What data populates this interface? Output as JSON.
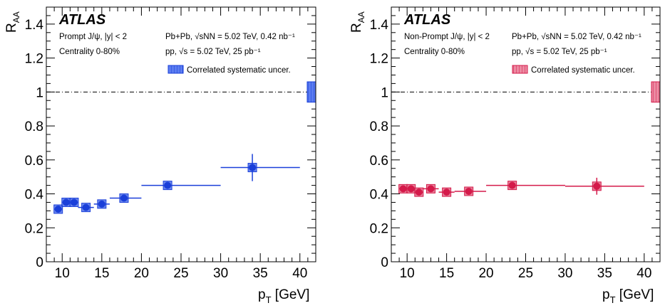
{
  "charts": [
    {
      "id": "left",
      "experiment": "ATLAS",
      "info_left": [
        "Prompt J/ψ, |y| < 2",
        "Centrality 0-80%"
      ],
      "info_right": [
        "Pb+Pb, √sNN = 5.02 TeV, 0.42 nb⁻¹",
        "pp, √s = 5.02 TeV, 25 pb⁻¹"
      ],
      "legend": "Correlated systematic uncer.",
      "color": "#1a3fd9",
      "box_color": "#3d63e8"
    },
    {
      "id": "right",
      "experiment": "ATLAS",
      "info_left": [
        "Non-Prompt J/ψ, |y| < 2",
        "Centrality 0-80%"
      ],
      "info_right": [
        "Pb+Pb, √sNN = 5.02 TeV, 0.42 nb⁻¹",
        "pp, √s = 5.02 TeV, 25 pb⁻¹"
      ],
      "legend": "Correlated systematic uncer.",
      "color": "#d41a4a",
      "box_color": "#e05a7a"
    }
  ],
  "chart_data": [
    {
      "type": "scatter",
      "title": "",
      "xlabel": "p_T [GeV]",
      "ylabel": "R_AA",
      "xlim": [
        8,
        42
      ],
      "ylim": [
        0,
        1.5
      ],
      "xticks": [
        10,
        15,
        20,
        25,
        30,
        35,
        40
      ],
      "yticks": [
        0,
        0.2,
        0.4,
        0.6,
        0.8,
        1,
        1.2,
        1.4
      ],
      "reference_line": 1.0,
      "correlated_uncertainty": [
        0.94,
        1.06
      ],
      "series": [
        {
          "name": "Prompt J/psi",
          "points": [
            {
              "x": 9.5,
              "xlo": 9.0,
              "xhi": 10.0,
              "y": 0.31,
              "err": 0.02
            },
            {
              "x": 10.5,
              "xlo": 10.0,
              "xhi": 11.0,
              "y": 0.35,
              "err": 0.02
            },
            {
              "x": 11.5,
              "xlo": 11.0,
              "xhi": 12.0,
              "y": 0.35,
              "err": 0.02
            },
            {
              "x": 13.0,
              "xlo": 12.0,
              "xhi": 14.0,
              "y": 0.32,
              "err": 0.015
            },
            {
              "x": 15.0,
              "xlo": 14.0,
              "xhi": 16.0,
              "y": 0.34,
              "err": 0.015
            },
            {
              "x": 17.8,
              "xlo": 16.0,
              "xhi": 20.0,
              "y": 0.375,
              "err": 0.015
            },
            {
              "x": 23.3,
              "xlo": 20.0,
              "xhi": 30.0,
              "y": 0.45,
              "err": 0.02
            },
            {
              "x": 34.0,
              "xlo": 30.0,
              "xhi": 40.0,
              "y": 0.555,
              "err": 0.08
            }
          ]
        }
      ]
    },
    {
      "type": "scatter",
      "title": "",
      "xlabel": "p_T [GeV]",
      "ylabel": "R_AA",
      "xlim": [
        8,
        42
      ],
      "ylim": [
        0,
        1.5
      ],
      "xticks": [
        10,
        15,
        20,
        25,
        30,
        35,
        40
      ],
      "yticks": [
        0,
        0.2,
        0.4,
        0.6,
        0.8,
        1,
        1.2,
        1.4
      ],
      "reference_line": 1.0,
      "correlated_uncertainty": [
        0.94,
        1.06
      ],
      "series": [
        {
          "name": "Non-Prompt J/psi",
          "points": [
            {
              "x": 9.5,
              "xlo": 9.0,
              "xhi": 10.0,
              "y": 0.43,
              "err": 0.02
            },
            {
              "x": 10.5,
              "xlo": 10.0,
              "xhi": 11.0,
              "y": 0.43,
              "err": 0.02
            },
            {
              "x": 11.5,
              "xlo": 11.0,
              "xhi": 12.0,
              "y": 0.41,
              "err": 0.02
            },
            {
              "x": 13.0,
              "xlo": 12.0,
              "xhi": 14.0,
              "y": 0.43,
              "err": 0.015
            },
            {
              "x": 15.0,
              "xlo": 14.0,
              "xhi": 16.0,
              "y": 0.41,
              "err": 0.015
            },
            {
              "x": 17.8,
              "xlo": 16.0,
              "xhi": 20.0,
              "y": 0.415,
              "err": 0.015
            },
            {
              "x": 23.3,
              "xlo": 20.0,
              "xhi": 30.0,
              "y": 0.45,
              "err": 0.02
            },
            {
              "x": 34.0,
              "xlo": 30.0,
              "xhi": 40.0,
              "y": 0.445,
              "err": 0.05
            }
          ]
        }
      ]
    }
  ]
}
